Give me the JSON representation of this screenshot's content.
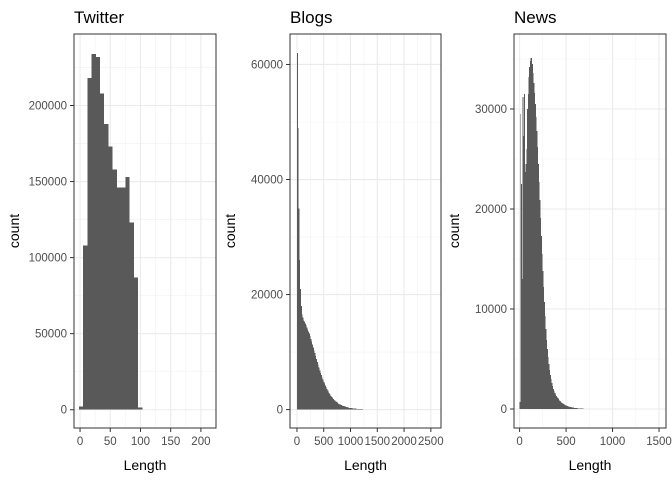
{
  "chart_data": [
    {
      "type": "bar",
      "title": "Twitter",
      "xlabel": "Length",
      "ylabel": "count",
      "xlim": [
        -10,
        225
      ],
      "ylim": [
        -12000,
        247000
      ],
      "xticks": [
        0,
        50,
        100,
        150,
        200
      ],
      "xtick_labels": [
        "0",
        "50",
        "100",
        "150",
        "200"
      ],
      "yticks": [
        0,
        50000,
        100000,
        150000,
        200000
      ],
      "ytick_labels": [
        "0",
        "50000",
        "100000",
        "150000",
        "200000"
      ],
      "grid": true,
      "bin_width": 7,
      "bin_start": -2,
      "counts": [
        2000,
        108000,
        218000,
        234000,
        232000,
        208000,
        188000,
        173000,
        158000,
        146000,
        146000,
        153000,
        123000,
        87000,
        1500
      ]
    },
    {
      "type": "bar",
      "title": "Blogs",
      "xlabel": "Length",
      "ylabel": "count",
      "xlim": [
        -130,
        2690
      ],
      "ylim": [
        -3200,
        65300
      ],
      "xticks": [
        0,
        500,
        1000,
        1500,
        2000,
        2500
      ],
      "xtick_labels": [
        "0",
        "500",
        "1000",
        "1500",
        "2000",
        "2500"
      ],
      "yticks": [
        0,
        20000,
        40000,
        60000
      ],
      "ytick_labels": [
        "0",
        "20000",
        "40000",
        "60000"
      ],
      "grid": true,
      "bin_width": 15,
      "bin_start": 0,
      "counts": [
        62000,
        49000,
        35000,
        26000,
        21000,
        18000,
        16500,
        16000,
        15500,
        15300,
        15000,
        14700,
        14300,
        13900,
        13600,
        13200,
        12800,
        12300,
        11800,
        11300,
        10800,
        10300,
        9800,
        9300,
        8800,
        8300,
        7800,
        7300,
        6800,
        6400,
        6000,
        5600,
        5200,
        4800,
        4500,
        4200,
        3900,
        3600,
        3300,
        3000,
        2800,
        2600,
        2400,
        2200,
        2000,
        1850,
        1700,
        1550,
        1400,
        1300,
        1200,
        1100,
        1000,
        920,
        850,
        780,
        720,
        660,
        600,
        550,
        500,
        460,
        420,
        380,
        350,
        320,
        290,
        260,
        240,
        220,
        200,
        180,
        165,
        150,
        135,
        120,
        110,
        100,
        90,
        80,
        70,
        60,
        50,
        40,
        30,
        20,
        15,
        10,
        8,
        5,
        3,
        2,
        1
      ]
    },
    {
      "type": "bar",
      "title": "News",
      "xlabel": "Length",
      "ylabel": "count",
      "xlim": [
        -60,
        1575
      ],
      "ylim": [
        -1900,
        37500
      ],
      "xticks": [
        0,
        500,
        1000,
        1500
      ],
      "xtick_labels": [
        "0",
        "500",
        "1000",
        "1500"
      ],
      "yticks": [
        0,
        10000,
        20000,
        30000
      ],
      "ytick_labels": [
        "0",
        "10000",
        "20000",
        "30000"
      ],
      "grid": true,
      "bin_width": 8,
      "bin_start": 0,
      "counts": [
        700,
        29500,
        22500,
        13000,
        31200,
        27300,
        31500,
        23700,
        24500,
        26000,
        30000,
        31500,
        33200,
        34200,
        34800,
        35100,
        35100,
        34500,
        33600,
        32600,
        31600,
        30500,
        29200,
        27800,
        26200,
        24500,
        22700,
        20900,
        19100,
        17300,
        15500,
        13800,
        12200,
        10700,
        9300,
        8000,
        6900,
        6000,
        5200,
        4500,
        3900,
        3400,
        3000,
        2600,
        2300,
        2000,
        1800,
        1600,
        1450,
        1300,
        1200,
        1100,
        1000,
        900,
        820,
        740,
        670,
        600,
        540,
        490,
        440,
        400,
        360,
        330,
        300,
        270,
        245,
        220,
        200,
        180,
        165,
        150,
        135,
        120,
        110,
        100,
        90,
        80,
        70,
        60,
        55,
        50,
        45,
        40,
        35,
        30,
        25,
        20,
        18,
        15,
        12,
        10,
        8,
        6,
        5,
        4,
        3,
        2,
        2,
        1,
        1,
        1,
        1,
        1,
        1,
        1,
        1,
        1,
        1,
        1,
        1,
        1,
        1,
        1,
        1,
        1,
        1,
        1,
        1,
        1,
        1,
        1,
        1,
        1,
        1,
        1,
        1,
        1,
        1,
        1,
        1,
        1,
        1,
        1
      ]
    }
  ]
}
